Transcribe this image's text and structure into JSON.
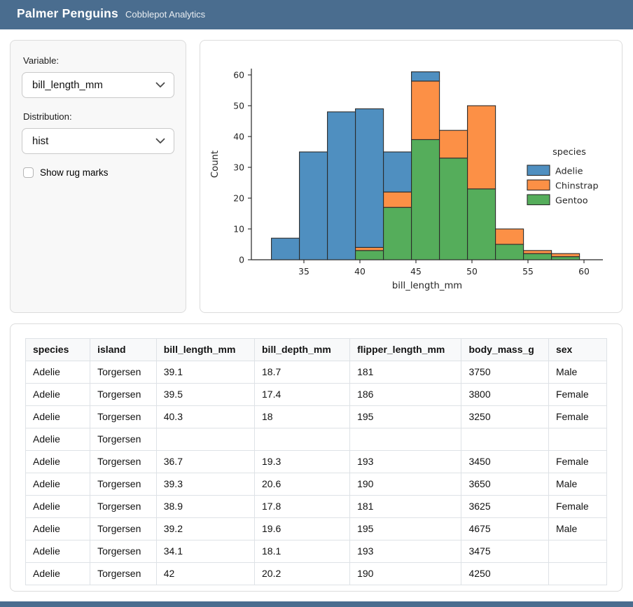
{
  "header": {
    "title": "Palmer Penguins",
    "subtitle": "Cobblepot Analytics"
  },
  "sidebar": {
    "variable_label": "Variable:",
    "variable_value": "bill_length_mm",
    "distribution_label": "Distribution:",
    "distribution_value": "hist",
    "rug_label": "Show rug marks",
    "rug_checked": false
  },
  "colors": {
    "accent": "#4a6d8f",
    "adelie": "#4f8fc0",
    "chinstrap": "#fc9046",
    "gentoo": "#55ad5b",
    "bar_edge": "#2b2b2b"
  },
  "chart_data": {
    "type": "bar",
    "subtype": "stacked-histogram",
    "title": "",
    "xlabel": "bill_length_mm",
    "ylabel": "Count",
    "x_ticks": [
      35,
      40,
      45,
      50,
      55,
      60
    ],
    "y_ticks": [
      0,
      10,
      20,
      30,
      40,
      50,
      60
    ],
    "xlim": [
      29.5,
      61.5
    ],
    "ylim": [
      0,
      64
    ],
    "grid": false,
    "bin_edges": [
      32.1,
      34.6,
      37.1,
      39.6,
      42.1,
      44.6,
      47.1,
      49.6,
      52.1,
      54.6,
      57.1,
      59.6
    ],
    "series": [
      {
        "name": "Gentoo",
        "color": "#55ad5b",
        "values": [
          0,
          0,
          0,
          3,
          17,
          39,
          33,
          23,
          5,
          2,
          1
        ]
      },
      {
        "name": "Chinstrap",
        "color": "#fc9046",
        "values": [
          0,
          0,
          0,
          1,
          5,
          19,
          9,
          27,
          5,
          1,
          1
        ]
      },
      {
        "name": "Adelie",
        "color": "#4f8fc0",
        "values": [
          7,
          35,
          48,
          45,
          13,
          3,
          0,
          0,
          0,
          0,
          0
        ]
      }
    ],
    "bin_totals": [
      7,
      35,
      48,
      49,
      35,
      61,
      42,
      50,
      10,
      3,
      2
    ],
    "legend": {
      "title": "species",
      "position": "right",
      "entries": [
        {
          "label": "Adelie",
          "color": "#4f8fc0"
        },
        {
          "label": "Chinstrap",
          "color": "#fc9046"
        },
        {
          "label": "Gentoo",
          "color": "#55ad5b"
        }
      ]
    }
  },
  "table": {
    "columns": [
      "species",
      "island",
      "bill_length_mm",
      "bill_depth_mm",
      "flipper_length_mm",
      "body_mass_g",
      "sex"
    ],
    "col_widths_pct": [
      11.1,
      11.4,
      16.9,
      16.4,
      19.2,
      15.0,
      10.0
    ],
    "rows": [
      [
        "Adelie",
        "Torgersen",
        "39.1",
        "18.7",
        "181",
        "3750",
        "Male"
      ],
      [
        "Adelie",
        "Torgersen",
        "39.5",
        "17.4",
        "186",
        "3800",
        "Female"
      ],
      [
        "Adelie",
        "Torgersen",
        "40.3",
        "18",
        "195",
        "3250",
        "Female"
      ],
      [
        "Adelie",
        "Torgersen",
        "",
        "",
        "",
        "",
        ""
      ],
      [
        "Adelie",
        "Torgersen",
        "36.7",
        "19.3",
        "193",
        "3450",
        "Female"
      ],
      [
        "Adelie",
        "Torgersen",
        "39.3",
        "20.6",
        "190",
        "3650",
        "Male"
      ],
      [
        "Adelie",
        "Torgersen",
        "38.9",
        "17.8",
        "181",
        "3625",
        "Female"
      ],
      [
        "Adelie",
        "Torgersen",
        "39.2",
        "19.6",
        "195",
        "4675",
        "Male"
      ],
      [
        "Adelie",
        "Torgersen",
        "34.1",
        "18.1",
        "193",
        "3475",
        ""
      ],
      [
        "Adelie",
        "Torgersen",
        "42",
        "20.2",
        "190",
        "4250",
        ""
      ]
    ]
  }
}
